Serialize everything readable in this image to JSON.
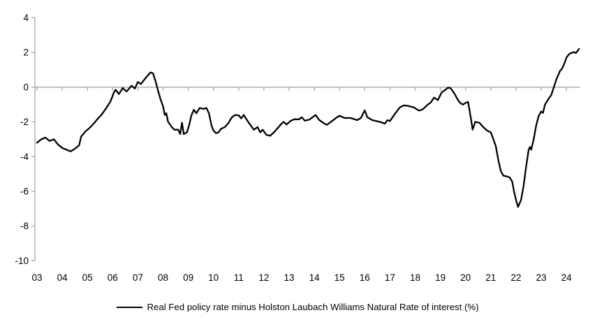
{
  "chart_data": {
    "type": "line",
    "title": "",
    "xlabel": "",
    "ylabel": "",
    "legend_position": "bottom-center",
    "grid": "zero-line-only",
    "axis_color": "#a6a6a6",
    "background_color": "#ffffff",
    "y_axis": {
      "min": -10,
      "max": 4,
      "tick_step": 2,
      "tick_labels": [
        "4",
        "2",
        "0",
        "-2",
        "-4",
        "-6",
        "-8",
        "-10"
      ]
    },
    "x_axis": {
      "start_year": 2003,
      "end_year": 2024.5,
      "tick_labels": [
        "03",
        "04",
        "05",
        "06",
        "07",
        "08",
        "09",
        "10",
        "11",
        "12",
        "13",
        "14",
        "15",
        "16",
        "17",
        "18",
        "19",
        "20",
        "21",
        "22",
        "23",
        "24"
      ]
    },
    "series": [
      {
        "name": "Real Fed policy rate minus Holston Laubach Williams Natural Rate of interest (%)",
        "color": "#000000",
        "points": [
          [
            2003.0,
            -3.2
          ],
          [
            2003.17,
            -3.0
          ],
          [
            2003.33,
            -2.9
          ],
          [
            2003.5,
            -3.1
          ],
          [
            2003.67,
            -3.0
          ],
          [
            2003.83,
            -3.3
          ],
          [
            2004.0,
            -3.5
          ],
          [
            2004.17,
            -3.6
          ],
          [
            2004.33,
            -3.7
          ],
          [
            2004.5,
            -3.55
          ],
          [
            2004.67,
            -3.35
          ],
          [
            2004.75,
            -2.85
          ],
          [
            2004.92,
            -2.55
          ],
          [
            2005.08,
            -2.35
          ],
          [
            2005.25,
            -2.1
          ],
          [
            2005.42,
            -1.8
          ],
          [
            2005.58,
            -1.55
          ],
          [
            2005.75,
            -1.2
          ],
          [
            2005.92,
            -0.8
          ],
          [
            2006.05,
            -0.3
          ],
          [
            2006.12,
            -0.15
          ],
          [
            2006.25,
            -0.4
          ],
          [
            2006.4,
            -0.05
          ],
          [
            2006.55,
            -0.25
          ],
          [
            2006.75,
            0.08
          ],
          [
            2006.88,
            -0.08
          ],
          [
            2007.0,
            0.3
          ],
          [
            2007.12,
            0.18
          ],
          [
            2007.35,
            0.6
          ],
          [
            2007.5,
            0.85
          ],
          [
            2007.6,
            0.8
          ],
          [
            2007.7,
            0.35
          ],
          [
            2007.8,
            -0.2
          ],
          [
            2007.9,
            -0.7
          ],
          [
            2008.0,
            -1.1
          ],
          [
            2008.07,
            -1.6
          ],
          [
            2008.13,
            -1.5
          ],
          [
            2008.2,
            -2.0
          ],
          [
            2008.35,
            -2.3
          ],
          [
            2008.45,
            -2.45
          ],
          [
            2008.6,
            -2.45
          ],
          [
            2008.68,
            -2.7
          ],
          [
            2008.75,
            -2.05
          ],
          [
            2008.82,
            -2.7
          ],
          [
            2008.95,
            -2.6
          ],
          [
            2009.05,
            -2.1
          ],
          [
            2009.12,
            -1.65
          ],
          [
            2009.22,
            -1.3
          ],
          [
            2009.32,
            -1.5
          ],
          [
            2009.45,
            -1.2
          ],
          [
            2009.6,
            -1.25
          ],
          [
            2009.72,
            -1.2
          ],
          [
            2009.82,
            -1.5
          ],
          [
            2009.92,
            -2.2
          ],
          [
            2010.0,
            -2.5
          ],
          [
            2010.1,
            -2.65
          ],
          [
            2010.2,
            -2.6
          ],
          [
            2010.3,
            -2.4
          ],
          [
            2010.45,
            -2.3
          ],
          [
            2010.6,
            -2.05
          ],
          [
            2010.72,
            -1.75
          ],
          [
            2010.85,
            -1.6
          ],
          [
            2011.0,
            -1.62
          ],
          [
            2011.1,
            -1.8
          ],
          [
            2011.2,
            -1.6
          ],
          [
            2011.4,
            -2.05
          ],
          [
            2011.6,
            -2.45
          ],
          [
            2011.75,
            -2.3
          ],
          [
            2011.85,
            -2.6
          ],
          [
            2011.95,
            -2.45
          ],
          [
            2012.1,
            -2.75
          ],
          [
            2012.25,
            -2.8
          ],
          [
            2012.4,
            -2.6
          ],
          [
            2012.55,
            -2.35
          ],
          [
            2012.7,
            -2.1
          ],
          [
            2012.78,
            -2.0
          ],
          [
            2012.9,
            -2.15
          ],
          [
            2013.05,
            -1.95
          ],
          [
            2013.2,
            -1.85
          ],
          [
            2013.4,
            -1.85
          ],
          [
            2013.5,
            -1.73
          ],
          [
            2013.62,
            -1.93
          ],
          [
            2013.8,
            -1.87
          ],
          [
            2014.05,
            -1.6
          ],
          [
            2014.2,
            -1.9
          ],
          [
            2014.4,
            -2.1
          ],
          [
            2014.5,
            -2.17
          ],
          [
            2014.7,
            -1.95
          ],
          [
            2014.9,
            -1.73
          ],
          [
            2015.0,
            -1.65
          ],
          [
            2015.2,
            -1.77
          ],
          [
            2015.45,
            -1.78
          ],
          [
            2015.7,
            -1.9
          ],
          [
            2015.85,
            -1.77
          ],
          [
            2016.0,
            -1.33
          ],
          [
            2016.1,
            -1.73
          ],
          [
            2016.3,
            -1.9
          ],
          [
            2016.6,
            -2.0
          ],
          [
            2016.8,
            -2.1
          ],
          [
            2016.9,
            -1.9
          ],
          [
            2017.0,
            -1.95
          ],
          [
            2017.2,
            -1.53
          ],
          [
            2017.4,
            -1.15
          ],
          [
            2017.55,
            -1.05
          ],
          [
            2017.7,
            -1.07
          ],
          [
            2017.95,
            -1.17
          ],
          [
            2018.15,
            -1.35
          ],
          [
            2018.3,
            -1.28
          ],
          [
            2018.5,
            -1.0
          ],
          [
            2018.62,
            -0.88
          ],
          [
            2018.75,
            -0.6
          ],
          [
            2018.9,
            -0.75
          ],
          [
            2019.05,
            -0.3
          ],
          [
            2019.2,
            -0.15
          ],
          [
            2019.3,
            -0.03
          ],
          [
            2019.4,
            -0.05
          ],
          [
            2019.55,
            -0.35
          ],
          [
            2019.7,
            -0.75
          ],
          [
            2019.8,
            -0.93
          ],
          [
            2019.9,
            -1.0
          ],
          [
            2020.0,
            -0.9
          ],
          [
            2020.1,
            -0.85
          ],
          [
            2020.2,
            -1.7
          ],
          [
            2020.28,
            -2.45
          ],
          [
            2020.38,
            -2.0
          ],
          [
            2020.55,
            -2.05
          ],
          [
            2020.7,
            -2.3
          ],
          [
            2020.85,
            -2.5
          ],
          [
            2021.0,
            -2.6
          ],
          [
            2021.1,
            -3.0
          ],
          [
            2021.2,
            -3.4
          ],
          [
            2021.3,
            -4.2
          ],
          [
            2021.4,
            -4.85
          ],
          [
            2021.5,
            -5.1
          ],
          [
            2021.65,
            -5.15
          ],
          [
            2021.75,
            -5.2
          ],
          [
            2021.85,
            -5.45
          ],
          [
            2021.92,
            -6.0
          ],
          [
            2022.0,
            -6.5
          ],
          [
            2022.08,
            -6.9
          ],
          [
            2022.2,
            -6.5
          ],
          [
            2022.3,
            -5.7
          ],
          [
            2022.4,
            -4.6
          ],
          [
            2022.5,
            -3.6
          ],
          [
            2022.55,
            -3.45
          ],
          [
            2022.6,
            -3.6
          ],
          [
            2022.7,
            -3.0
          ],
          [
            2022.8,
            -2.2
          ],
          [
            2022.9,
            -1.65
          ],
          [
            2023.0,
            -1.4
          ],
          [
            2023.07,
            -1.48
          ],
          [
            2023.15,
            -1.0
          ],
          [
            2023.3,
            -0.65
          ],
          [
            2023.4,
            -0.45
          ],
          [
            2023.5,
            0.0
          ],
          [
            2023.6,
            0.45
          ],
          [
            2023.75,
            0.95
          ],
          [
            2023.82,
            1.05
          ],
          [
            2023.9,
            1.3
          ],
          [
            2024.0,
            1.7
          ],
          [
            2024.1,
            1.9
          ],
          [
            2024.2,
            1.98
          ],
          [
            2024.3,
            2.02
          ],
          [
            2024.38,
            1.97
          ],
          [
            2024.45,
            2.1
          ],
          [
            2024.5,
            2.2
          ]
        ]
      }
    ]
  },
  "legend": {
    "label": "Real Fed policy rate minus Holston Laubach Williams Natural Rate of interest (%)"
  }
}
